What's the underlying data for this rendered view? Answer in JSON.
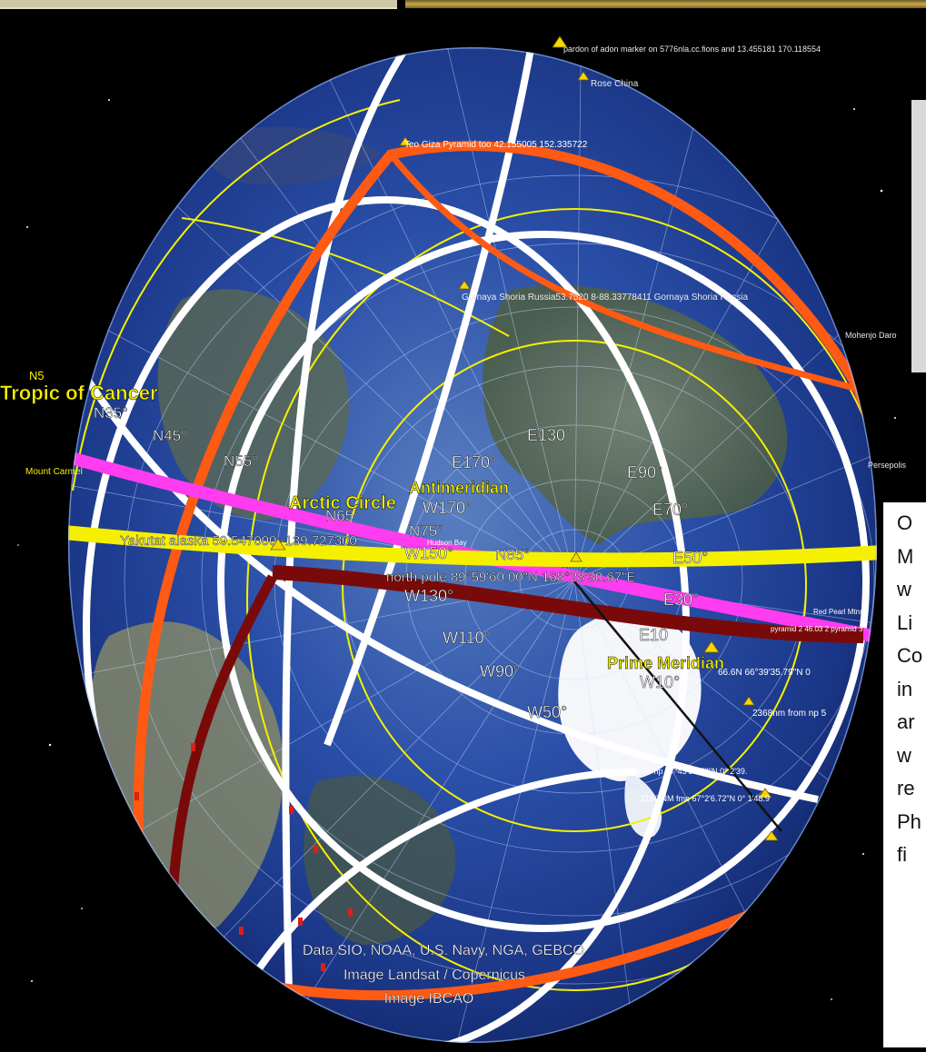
{
  "map": {
    "top_labels": {
      "pardon": "pardon of adon marker on 5776nla.cc.fions and 13.455181 170.118554",
      "rose_china": "Rose China",
      "giza": "Teo Giza Pyramid too 42.155005 152.335722",
      "gornaya": "Gornaya Shoria Russia53.7520 8-88.33778411 Gornaya Shoria Russia",
      "mohenjo": "Mohenjo Daro",
      "persepolis": "Persepolis",
      "n5": "N5",
      "yellow_left": "Mount Carmel"
    },
    "lines": {
      "tropic_of_cancer": "Tropic of Cancer",
      "arctic_circle": "Arctic Circle",
      "antimeridian": "Antimeridian",
      "prime_meridian": "Prime Meridian"
    },
    "latitudes": [
      "N35°",
      "N45°",
      "N55°",
      "N65°",
      "N75°",
      "N85°"
    ],
    "longitudes": [
      "E170°",
      "W170°",
      "E130°",
      "E90°",
      "E70°",
      "E50°",
      "W150°",
      "W130°",
      "E30°",
      "E10",
      "W110°",
      "W90°",
      "W10°",
      "W50°"
    ],
    "placemarks": {
      "yakutat": "Yakutat alaska 59.547000 -139.727300",
      "north_pole": "north pole 89°59'60.00\"N 168°28'30.67\"E",
      "red_east": "Red Pearl Mtns",
      "small_center": "Hudson Bay",
      "small_east": "pyramid 2 46.03 2 pyramid 3",
      "dist1": "66.6N 66°39'35.79\"N 0",
      "dist2": "2368nm from np 5",
      "dist3": "2368 NM from np 67°43'50.70\"N 0° 2'39.",
      "dist4": "2160 NM fme 67°2'6.72\"N 0° 1'48.9"
    },
    "attribution": {
      "line1": "Data SIO, NOAA, U.S. Navy, NGA, GEBCO",
      "line2": "Image Landsat / Copernicus",
      "line3": "Image IBCAO"
    }
  },
  "side_text": [
    "O",
    "M",
    "w",
    "Li",
    "Co",
    "in",
    "ar",
    "w",
    "re",
    "Ph",
    "fi"
  ],
  "colors": {
    "space": "#000000",
    "ocean": "#1f3f9a",
    "white_circle": "#ffffff",
    "orange_circle": "#ff5a14",
    "yellow_line": "#f5f000",
    "magenta_line": "#ff3cf0",
    "maroon_line": "#7a0a0a"
  }
}
